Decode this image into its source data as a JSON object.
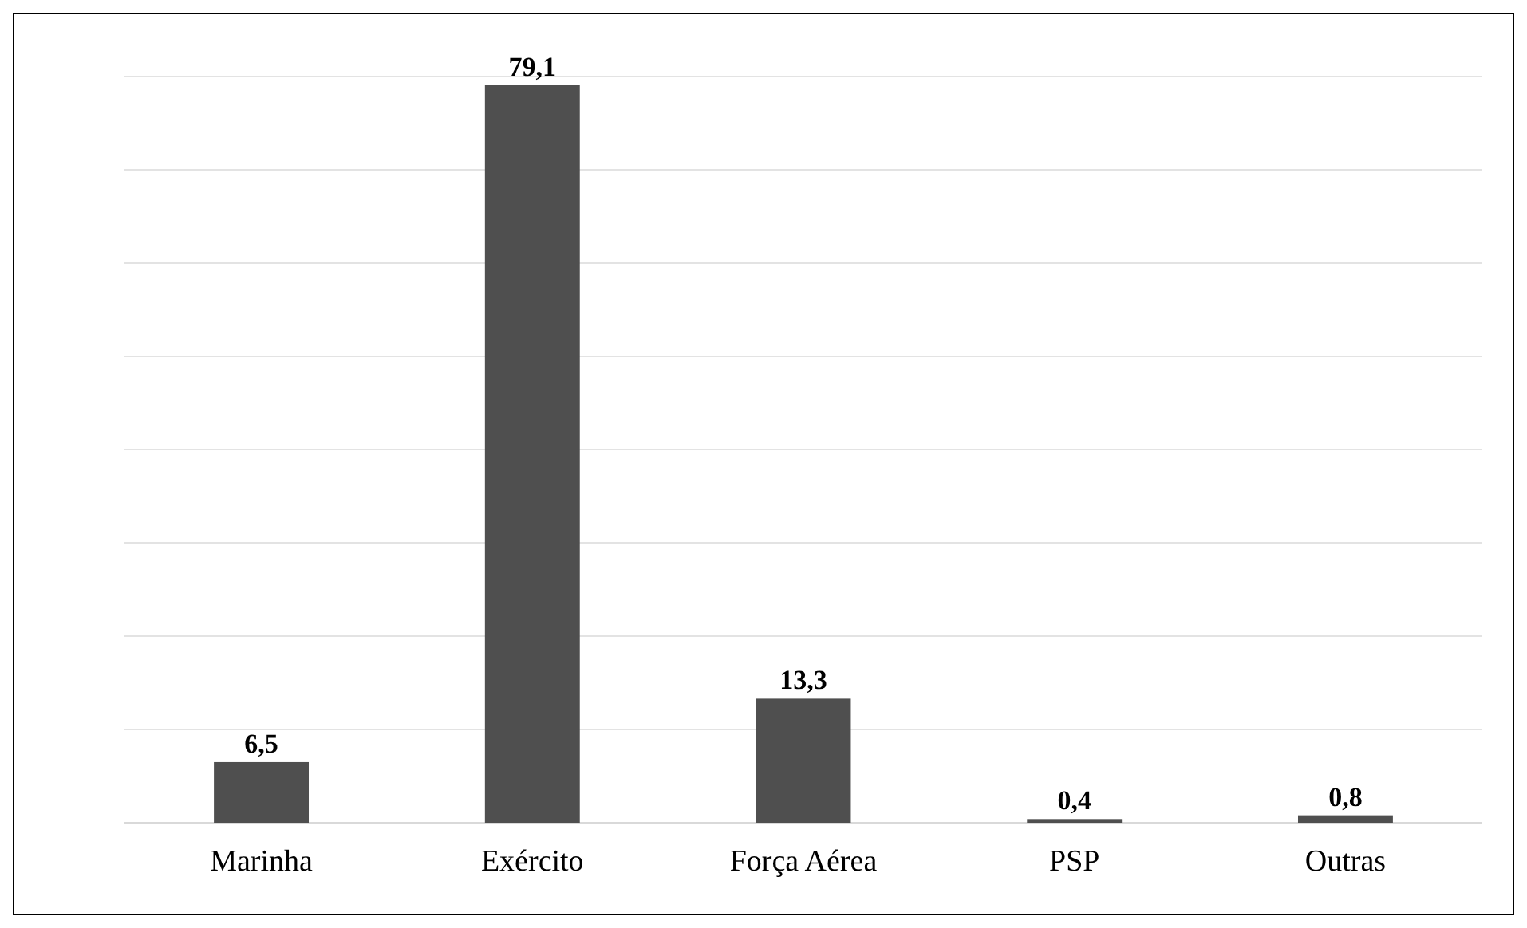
{
  "chart_data": {
    "type": "bar",
    "categories": [
      "Marinha",
      "Exército",
      "Força Aérea",
      "PSP",
      "Outras"
    ],
    "values": [
      6.5,
      79.1,
      13.3,
      0.4,
      0.8
    ],
    "value_labels": [
      "6,5",
      "79,1",
      "13,3",
      "0,4",
      "0,8"
    ],
    "color": "#4f4f4f",
    "ylim": [
      0,
      80
    ],
    "yticks": [
      {
        "value": 0,
        "label": null
      },
      {
        "value": 10,
        "label": null
      },
      {
        "value": 20,
        "label": null
      },
      {
        "value": 30,
        "label": null
      },
      {
        "value": 40,
        "label": null
      },
      {
        "value": 50,
        "label": null
      },
      {
        "value": 60,
        "label": null
      },
      {
        "value": 70,
        "label": null
      },
      {
        "value": 80,
        "label": null
      }
    ],
    "grid": "y",
    "tick_labels": "x"
  }
}
